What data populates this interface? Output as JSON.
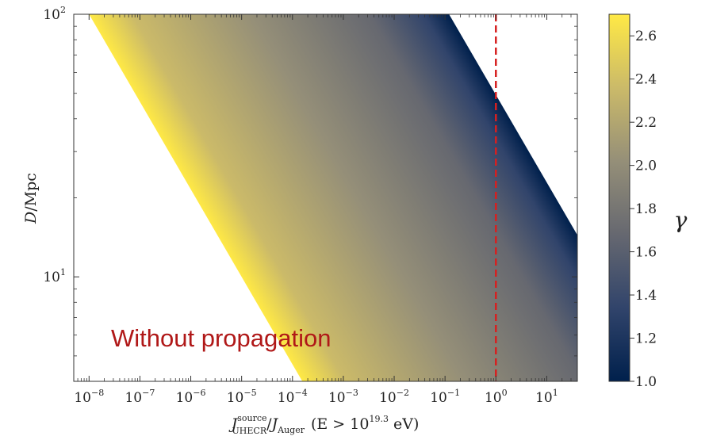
{
  "chart_data": {
    "type": "heatmap",
    "x_scale": "log",
    "y_scale": "log",
    "xlim": [
      5e-09,
      40
    ],
    "ylim": [
      4,
      100
    ],
    "x_ticks": [
      {
        "value": 1e-08,
        "base": "10",
        "exp": "−8"
      },
      {
        "value": 1e-07,
        "base": "10",
        "exp": "−7"
      },
      {
        "value": 1e-06,
        "base": "10",
        "exp": "−6"
      },
      {
        "value": 1e-05,
        "base": "10",
        "exp": "−5"
      },
      {
        "value": 0.0001,
        "base": "10",
        "exp": "−4"
      },
      {
        "value": 0.001,
        "base": "10",
        "exp": "−3"
      },
      {
        "value": 0.01,
        "base": "10",
        "exp": "−2"
      },
      {
        "value": 0.1,
        "base": "10",
        "exp": "−1"
      },
      {
        "value": 1,
        "base": "10",
        "exp": "0"
      },
      {
        "value": 10,
        "base": "10",
        "exp": "1"
      }
    ],
    "y_ticks": [
      {
        "value": 10,
        "base": "10",
        "exp": "1"
      },
      {
        "value": 100,
        "base": "10",
        "exp": "2"
      }
    ],
    "xlabel": {
      "J": "J",
      "J_sup": "source",
      "J_sub": "UHECR",
      "slash": "/",
      "J2": "J",
      "J2_sub": "Auger",
      "cond": "(E > 10",
      "cond_exp": "19.3",
      "cond_end": " eV)"
    },
    "ylabel": {
      "D": "D",
      "rest": "/Mpc"
    },
    "band": {
      "description_slope_x_per_y": -3,
      "left_edge_at_ymax_x": 1e-08,
      "right_edge_at_ymax_x": 0.12
    },
    "color_variable": "gamma",
    "colorbar": {
      "label": "γ",
      "range": [
        1.0,
        2.7
      ],
      "ticks": [
        "1.0",
        "1.2",
        "1.4",
        "1.6",
        "1.8",
        "2.0",
        "2.2",
        "2.4",
        "2.6"
      ],
      "tick_values": [
        1.0,
        1.2,
        1.4,
        1.6,
        1.8,
        2.0,
        2.2,
        2.4,
        2.6
      ],
      "colormap": "cividis",
      "colors": [
        "#00204c",
        "#31446b",
        "#666870",
        "#958f78",
        "#cbba69",
        "#ffe945"
      ]
    },
    "reference_line": {
      "x": 1,
      "style": "dashed",
      "color": "#d62020"
    },
    "annotation": "Without propagation",
    "annotation_color": "#b01818"
  }
}
